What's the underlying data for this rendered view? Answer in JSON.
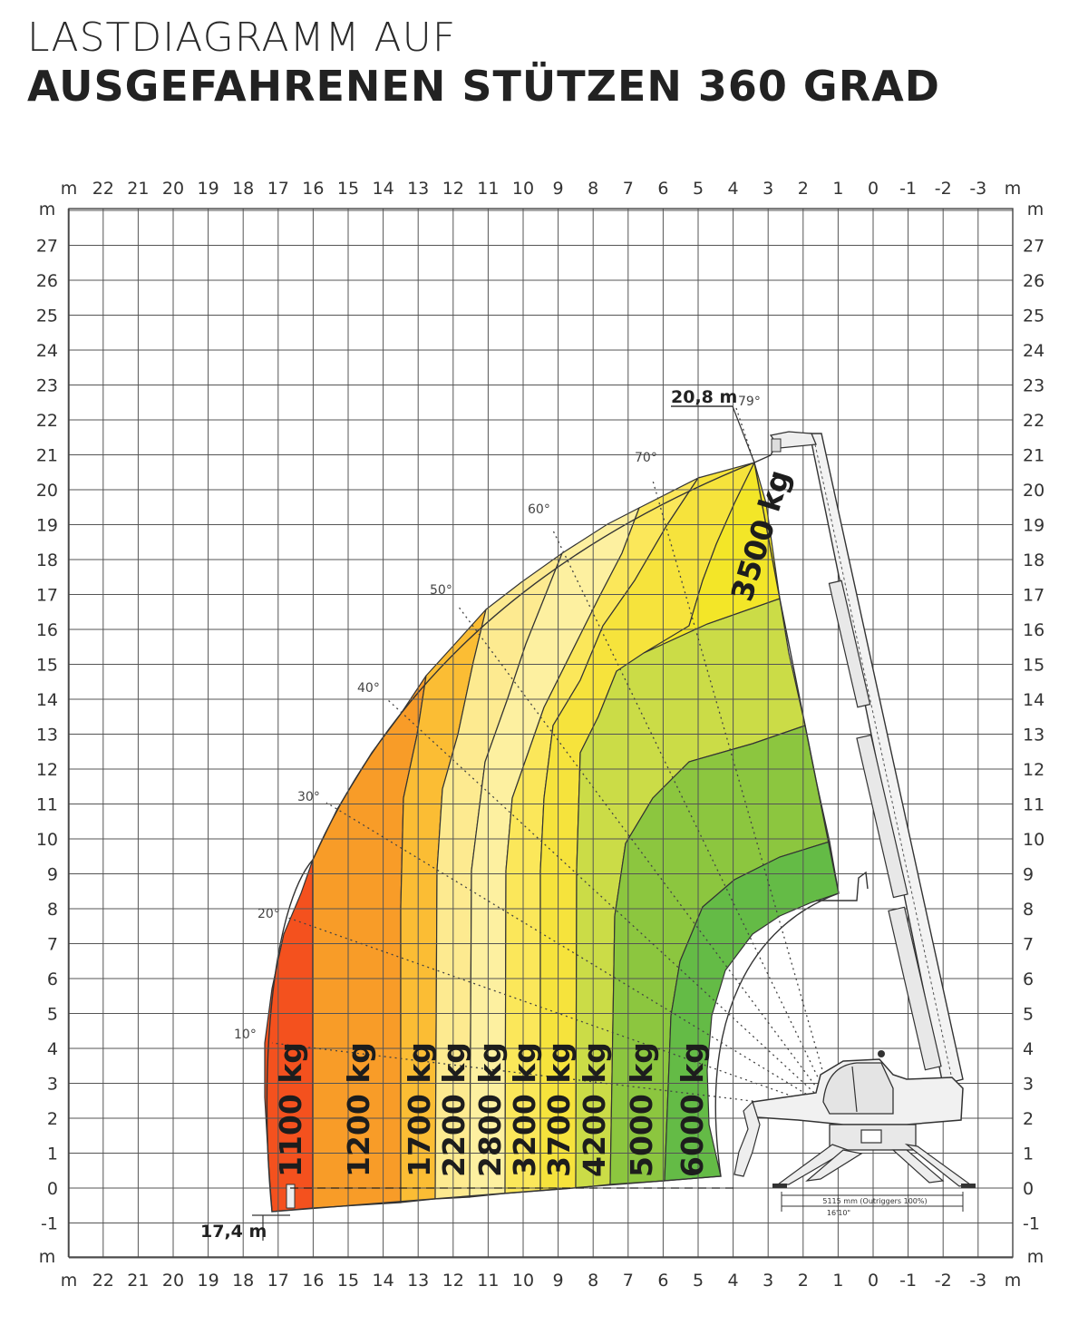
{
  "title": {
    "line1": "LASTDIAGRAMM AUF",
    "line2": "AUSGEFAHRENEN STÜTZEN 360 GRAD"
  },
  "axes": {
    "unit": "m",
    "x_ticks": [
      "22",
      "21",
      "20",
      "19",
      "18",
      "17",
      "16",
      "15",
      "14",
      "13",
      "12",
      "11",
      "10",
      "9",
      "8",
      "7",
      "6",
      "5",
      "4",
      "3",
      "2",
      "1",
      "0",
      "-1",
      "-2",
      "-3"
    ],
    "y_ticks": [
      "27",
      "26",
      "25",
      "24",
      "23",
      "22",
      "21",
      "20",
      "19",
      "18",
      "17",
      "16",
      "15",
      "14",
      "13",
      "12",
      "11",
      "10",
      "9",
      "8",
      "7",
      "6",
      "5",
      "4",
      "3",
      "2",
      "1",
      "0",
      "-1"
    ]
  },
  "zones": [
    {
      "label": "1100 kg",
      "color": "#f4511e"
    },
    {
      "label": "1200 kg",
      "color": "#f89c28"
    },
    {
      "label": "1700 kg",
      "color": "#fbbd34"
    },
    {
      "label": "2200 kg",
      "color": "#fdea90"
    },
    {
      "label": "2800 kg",
      "color": "#fdf0a0"
    },
    {
      "label": "3200 kg",
      "color": "#fbe75a"
    },
    {
      "label": "3700 kg",
      "color": "#f6e33c"
    },
    {
      "label": "4200 kg",
      "color": "#cbdc47"
    },
    {
      "label": "5000 kg",
      "color": "#8cc63f"
    },
    {
      "label": "6000 kg",
      "color": "#64bb46"
    },
    {
      "label": "3500 kg",
      "color": "#f3e628"
    }
  ],
  "angles": [
    "10°",
    "20°",
    "30°",
    "40°",
    "50°",
    "60°",
    "70°",
    "79°"
  ],
  "dimensions": {
    "max_height": "20,8 m",
    "max_reach": "17,4 m",
    "outrigger_span": "5115 mm (Outriggers 100%)",
    "outrigger_span_imperial": "16'10\""
  }
}
